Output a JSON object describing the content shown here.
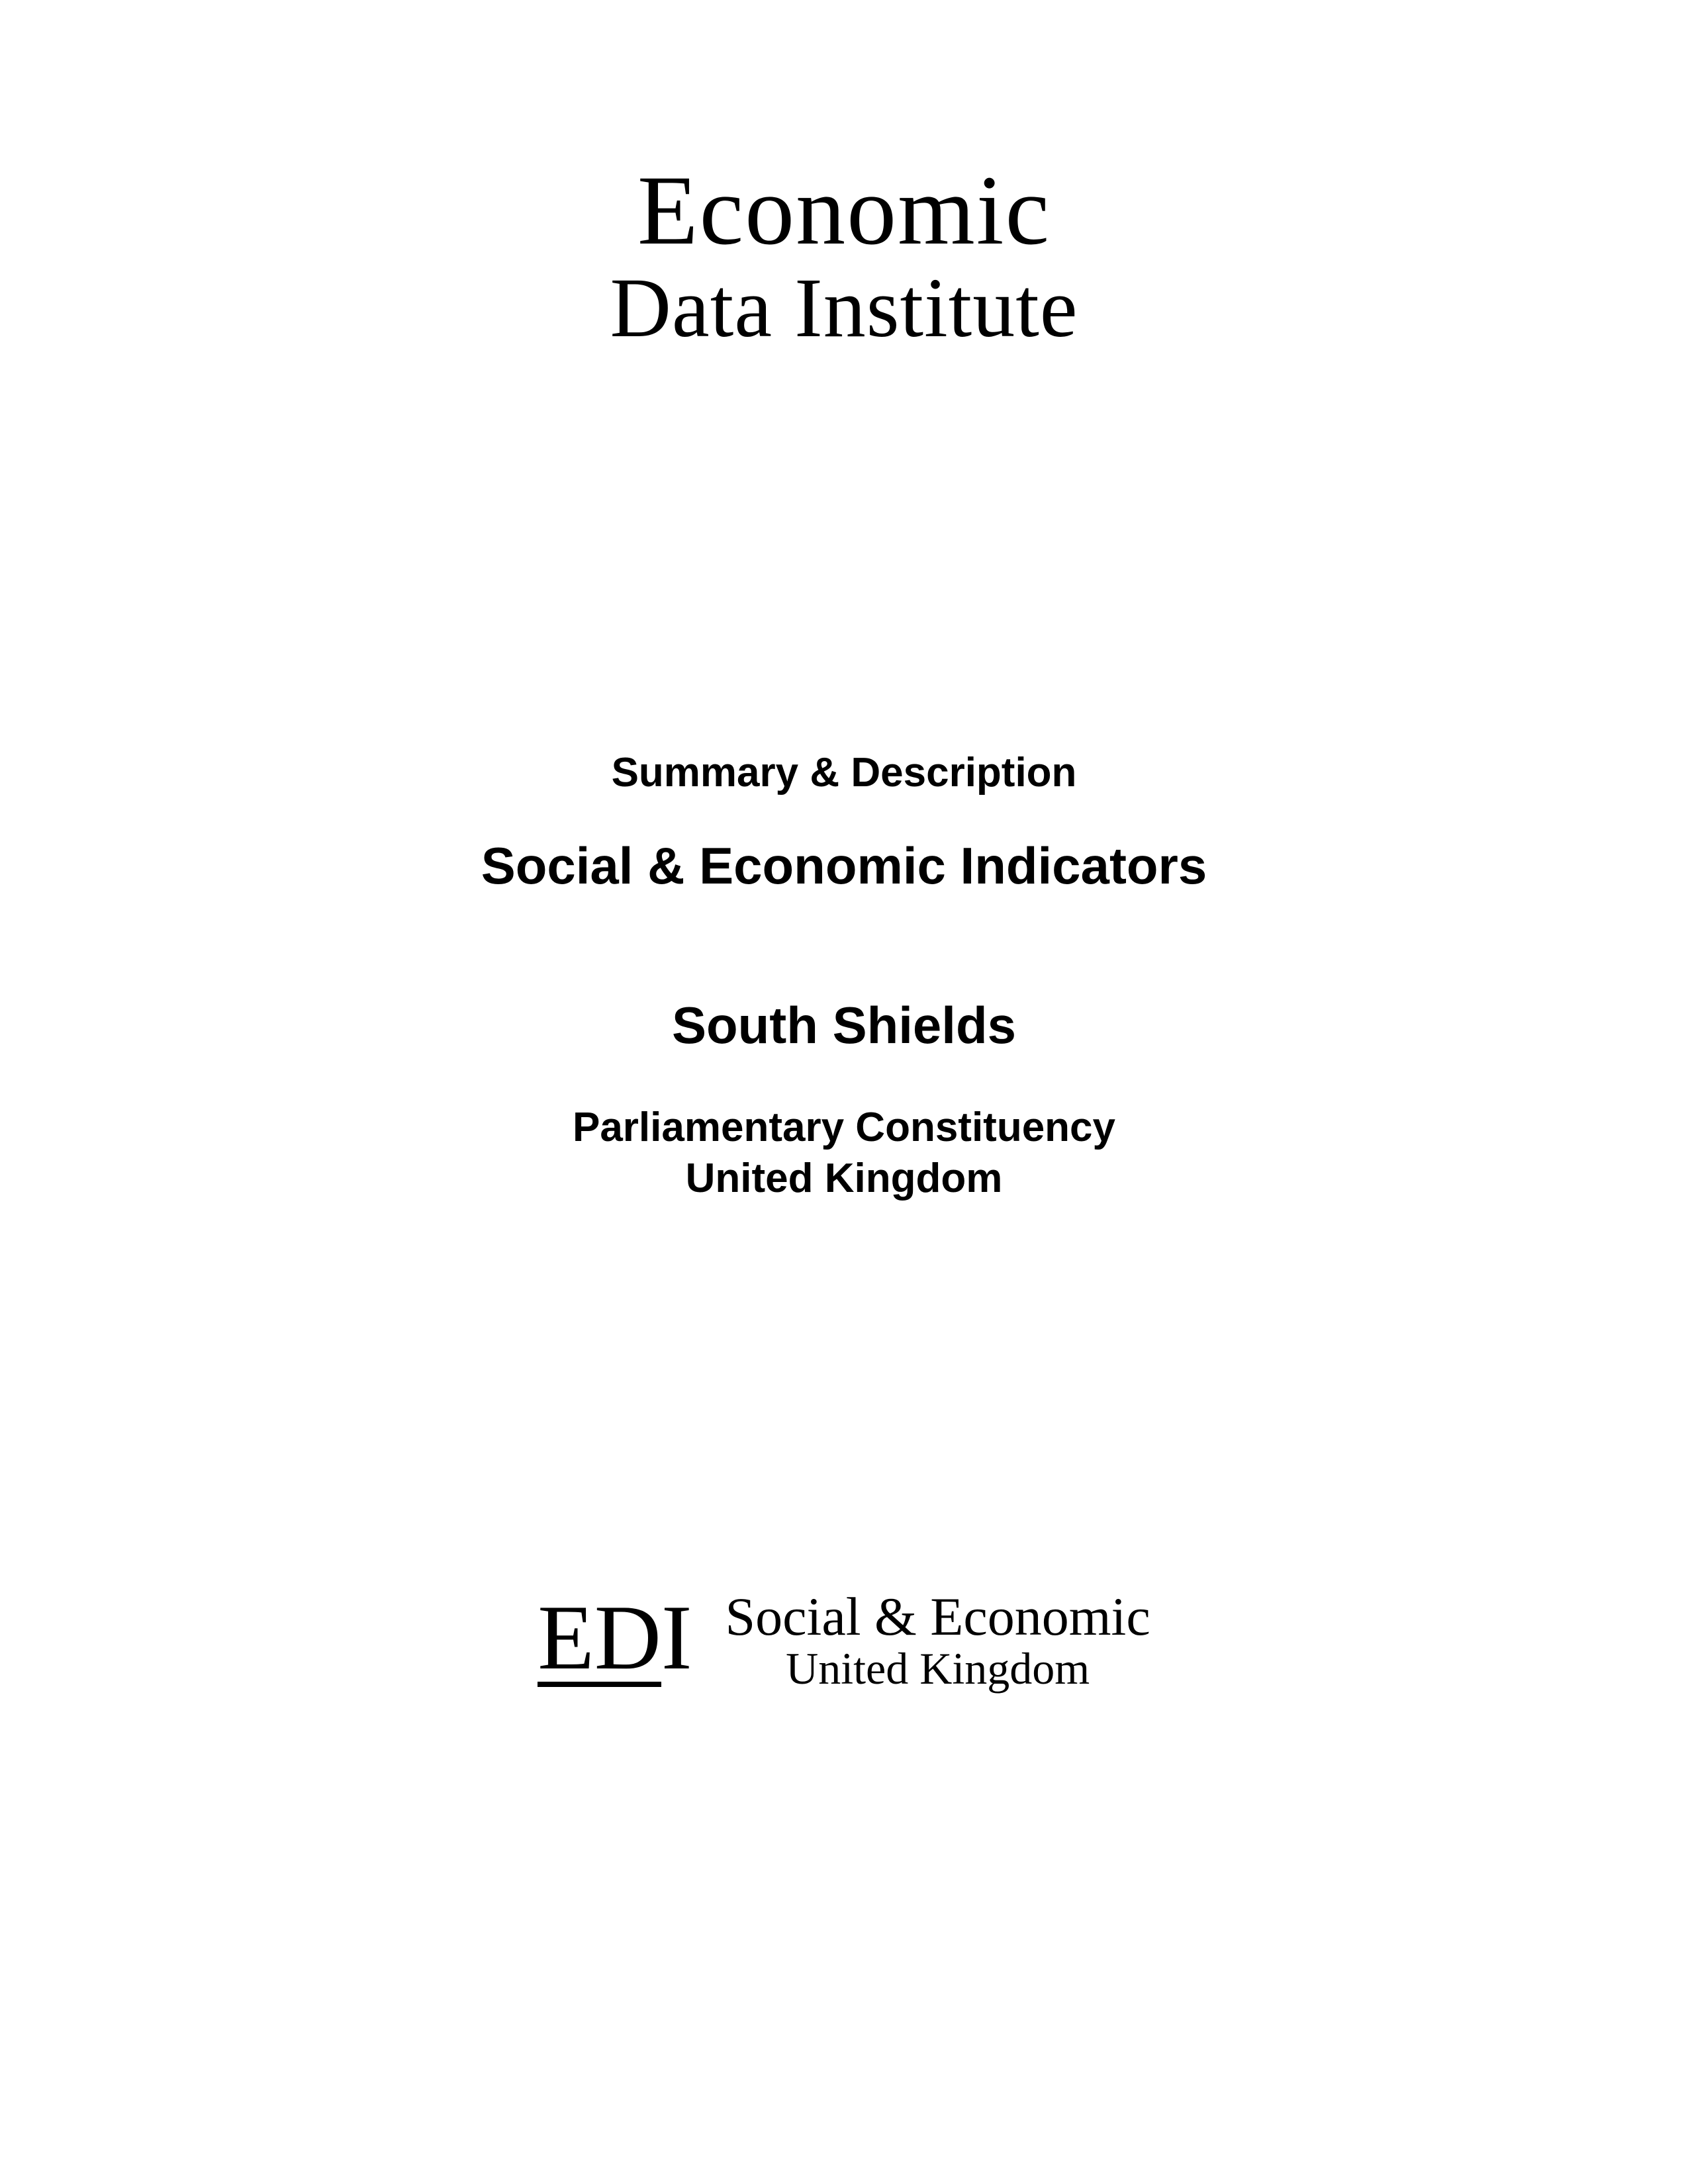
{
  "top_logo": {
    "line1": "Economic",
    "line2": "Data Institute"
  },
  "middle": {
    "summary": "Summary & Description",
    "main_title": "Social & Economic Indicators",
    "location": "South Shields",
    "subtitle_line1": "Parliamentary Constituency",
    "subtitle_line2": "United Kingdom"
  },
  "bottom_logo": {
    "abbr_e": "E",
    "abbr_d": "D",
    "abbr_i": "I",
    "line1": "Social & Economic",
    "line2": "United Kingdom"
  },
  "colors": {
    "background": "#ffffff",
    "text": "#000000"
  }
}
